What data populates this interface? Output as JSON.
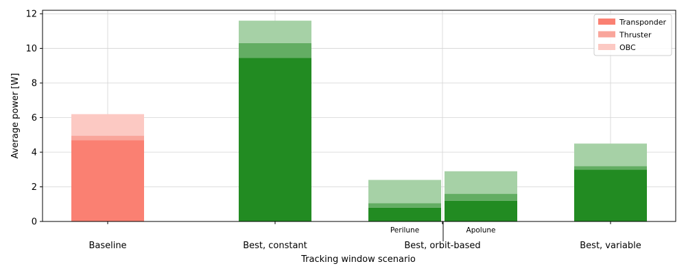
{
  "chart_data": {
    "type": "bar",
    "stacked": true,
    "xlabel": "Tracking window scenario",
    "ylabel": "Average power [W]",
    "ylim": [
      0,
      12.2
    ],
    "yticks": [
      0,
      2,
      4,
      6,
      8,
      10,
      12
    ],
    "grid": true,
    "legend_position": "top-right",
    "legend": [
      {
        "name": "Transponder",
        "color": "#fa8072"
      },
      {
        "name": "Thruster",
        "color": "#f9a59b"
      },
      {
        "name": "OBC",
        "color": "#fcc9c3"
      }
    ],
    "groups": [
      {
        "label": "Baseline",
        "sublabel": ""
      },
      {
        "label": "Best, constant",
        "sublabel": ""
      },
      {
        "label": "Best, orbit-based",
        "sublabel": "Perilune"
      },
      {
        "label": "",
        "sublabel": "Apolune"
      },
      {
        "label": "Best, variable",
        "sublabel": ""
      }
    ],
    "series": [
      {
        "name": "Transponder",
        "values": [
          4.7,
          9.45,
          0.8,
          1.2,
          3.0
        ]
      },
      {
        "name": "Thruster",
        "values": [
          0.25,
          0.85,
          0.25,
          0.4,
          0.2
        ]
      },
      {
        "name": "OBC",
        "values": [
          1.25,
          1.3,
          1.35,
          1.3,
          1.3
        ]
      }
    ],
    "bar_colors": [
      [
        "#fa8072",
        "#f9a59b",
        "#fcc9c3"
      ],
      [
        "#228b22",
        "#63ad63",
        "#a6d1a6"
      ],
      [
        "#228b22",
        "#63ad63",
        "#a6d1a6"
      ],
      [
        "#228b22",
        "#63ad63",
        "#a6d1a6"
      ],
      [
        "#228b22",
        "#63ad63",
        "#a6d1a6"
      ]
    ]
  }
}
